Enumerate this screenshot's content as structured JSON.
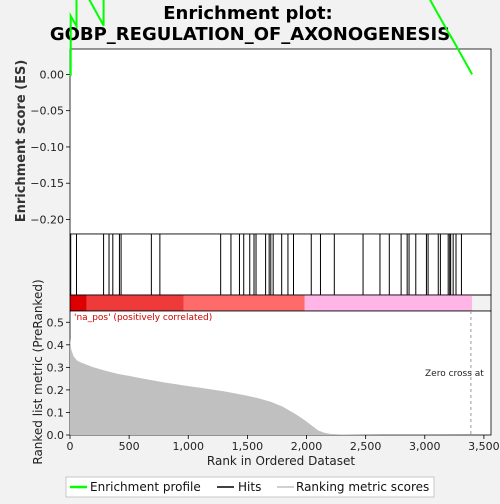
{
  "chart_data": {
    "type": "line",
    "title_line1": "Enrichment plot:",
    "title_line2": "GOBP_REGULATION_OF_AXONOGENESIS",
    "es_panel": {
      "ylabel": "Enrichment score (ES)",
      "ylim": [
        -0.22,
        0.035
      ],
      "yticks": [
        0.0,
        -0.05,
        -0.1,
        -0.15,
        -0.2
      ],
      "ytick_labels": [
        "0.00",
        "−0.05",
        "−0.10",
        "−0.15",
        "−0.20"
      ],
      "line_color": "#00ff00",
      "hits": [
        6,
        55,
        284,
        330,
        362,
        418,
        432,
        688,
        760,
        1274,
        1361,
        1433,
        1469,
        1520,
        1556,
        1573,
        1654,
        1684,
        1698,
        1718,
        1790,
        1843,
        1890,
        2040,
        2118,
        2235,
        2478,
        2621,
        2700,
        2800,
        2851,
        2867,
        2924,
        3014,
        3028,
        3114,
        3132,
        3198,
        3211,
        3219,
        3240,
        3264,
        3310
      ]
    },
    "rank_panel": {
      "ylabel": "Ranked list metric (PreRanked)",
      "ylim": [
        0.0,
        0.55
      ],
      "yticks": [
        0.0,
        0.1,
        0.2,
        0.3,
        0.4,
        0.5
      ],
      "ytick_labels": [
        "0.0",
        "0.1",
        "0.2",
        "0.3",
        "0.4",
        "0.5"
      ],
      "xlabel": "Rank in Ordered Dataset",
      "xlim": [
        0,
        3560
      ],
      "xticks": [
        0,
        500,
        1000,
        1500,
        2000,
        2500,
        3000,
        3500
      ],
      "xtick_labels": [
        "0",
        "500",
        "1,000",
        "1,500",
        "2,000",
        "2,500",
        "3,000",
        "3,500"
      ],
      "fill_color": "#c0c0c0",
      "metric_curve": {
        "x": [
          0,
          10,
          30,
          60,
          100,
          150,
          200,
          300,
          400,
          500,
          600,
          700,
          800,
          900,
          1000,
          1100,
          1200,
          1300,
          1400,
          1500,
          1600,
          1700,
          1800,
          1900,
          1950,
          2000,
          2050,
          2100,
          2150,
          2200,
          2300,
          2500,
          3000,
          3400
        ],
        "y": [
          0.43,
          0.38,
          0.35,
          0.33,
          0.32,
          0.31,
          0.3,
          0.285,
          0.272,
          0.262,
          0.252,
          0.242,
          0.233,
          0.225,
          0.217,
          0.21,
          0.202,
          0.194,
          0.184,
          0.174,
          0.162,
          0.147,
          0.125,
          0.095,
          0.078,
          0.06,
          0.04,
          0.02,
          0.01,
          0.005,
          0.002,
          0.001,
          0.0005,
          0.0
        ]
      },
      "label_pos": "'na_pos' (positively correlated)",
      "label_pos_color": "#cc0000",
      "zero_cross_label": "Zero cross at",
      "zero_cross_x": 3390
    },
    "color_bar": {
      "segments": [
        {
          "from": 0,
          "to": 140,
          "color": "#dd0000"
        },
        {
          "from": 140,
          "to": 960,
          "color": "#ee3a3a"
        },
        {
          "from": 960,
          "to": 1985,
          "color": "#ff6b6b"
        },
        {
          "from": 1985,
          "to": 3400,
          "color": "#ffb6e6"
        }
      ]
    },
    "legend": [
      {
        "label": "Enrichment profile",
        "color": "#00ff00"
      },
      {
        "label": "Hits",
        "color": "#000000"
      },
      {
        "label": "Ranking metric scores",
        "color": "#c0c0c0"
      }
    ]
  }
}
